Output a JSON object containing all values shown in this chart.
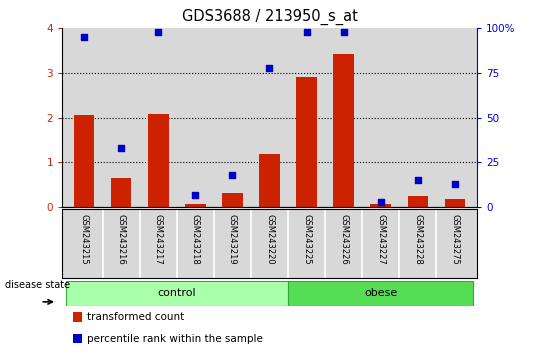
{
  "title": "GDS3688 / 213950_s_at",
  "samples": [
    "GSM243215",
    "GSM243216",
    "GSM243217",
    "GSM243218",
    "GSM243219",
    "GSM243220",
    "GSM243225",
    "GSM243226",
    "GSM243227",
    "GSM243228",
    "GSM243275"
  ],
  "transformed_count": [
    2.05,
    0.65,
    2.08,
    0.08,
    0.32,
    1.18,
    2.9,
    3.42,
    0.08,
    0.25,
    0.18
  ],
  "percentile_rank": [
    95,
    33,
    98,
    7,
    18,
    78,
    98,
    98,
    3,
    15,
    13
  ],
  "groups": [
    {
      "label": "control",
      "start": 0,
      "end": 6,
      "color": "#aaffaa",
      "edge": "#33aa33"
    },
    {
      "label": "obese",
      "start": 6,
      "end": 11,
      "color": "#55dd55",
      "edge": "#33aa33"
    }
  ],
  "bar_color": "#cc2200",
  "dot_color": "#0000cc",
  "ylim_left": [
    0,
    4
  ],
  "ylim_right": [
    0,
    100
  ],
  "yticks_left": [
    0,
    1,
    2,
    3,
    4
  ],
  "yticks_right": [
    0,
    25,
    50,
    75,
    100
  ],
  "ytick_labels_right": [
    "0",
    "25",
    "50",
    "75",
    "100%"
  ],
  "axis_bg": "#d8d8d8",
  "bar_width": 0.55
}
